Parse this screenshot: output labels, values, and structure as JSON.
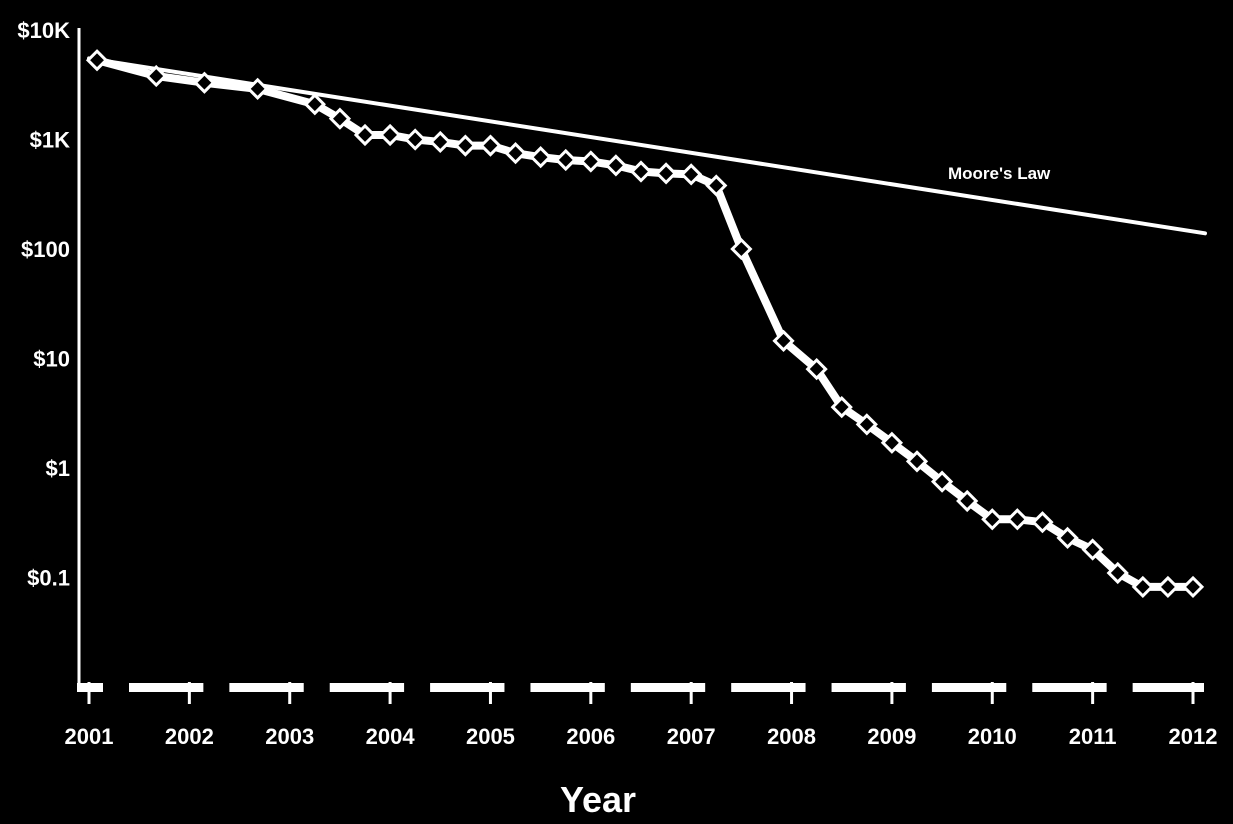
{
  "chart_data": {
    "type": "line",
    "title": "",
    "xlabel": "Year",
    "ylabel": "",
    "yscale": "log",
    "ylim": [
      0.01,
      10000
    ],
    "xlim": [
      2001,
      2012
    ],
    "x_ticks": [
      "2001",
      "2002",
      "2003",
      "2004",
      "2005",
      "2006",
      "2007",
      "2008",
      "2009",
      "2010",
      "2011",
      "2012"
    ],
    "y_ticks": [
      {
        "value": 10000,
        "label": "$10K"
      },
      {
        "value": 1000,
        "label": "$1K"
      },
      {
        "value": 100,
        "label": "$100"
      },
      {
        "value": 10,
        "label": "$10"
      },
      {
        "value": 1,
        "label": "$1"
      },
      {
        "value": 0.1,
        "label": "$0.1"
      }
    ],
    "grid": false,
    "series": [
      {
        "name": "",
        "marker": "diamond",
        "x": [
          2001.08,
          2001.67,
          2002.15,
          2002.68,
          2003.25,
          2003.5,
          2003.75,
          2004.0,
          2004.25,
          2004.5,
          2004.75,
          2005.0,
          2005.25,
          2005.5,
          2005.75,
          2006.0,
          2006.25,
          2006.5,
          2006.75,
          2007.0,
          2007.25,
          2007.5,
          2007.92,
          2008.25,
          2008.5,
          2008.75,
          2009.0,
          2009.25,
          2009.5,
          2009.75,
          2010.0,
          2010.25,
          2010.5,
          2010.75,
          2011.0,
          2011.25,
          2011.5,
          2011.75,
          2012.0
        ],
        "values": [
          5300,
          3800,
          3300,
          2900,
          2100,
          1550,
          1100,
          1100,
          1000,
          950,
          880,
          880,
          750,
          690,
          650,
          630,
          580,
          510,
          490,
          480,
          380,
          100,
          14.5,
          8,
          3.6,
          2.5,
          1.7,
          1.15,
          0.75,
          0.5,
          0.34,
          0.34,
          0.32,
          0.23,
          0.18,
          0.11,
          0.082,
          0.082,
          0.082
        ]
      },
      {
        "name": "Moore's Law",
        "x": [
          2001,
          2012
        ],
        "values": [
          5500,
          145
        ]
      }
    ]
  }
}
